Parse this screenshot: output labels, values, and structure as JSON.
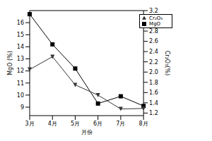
{
  "chart_data": {
    "type": "line",
    "x_label": "月份",
    "y_label": "MgO (%)",
    "y2_label": "Cr₂O₃(%)",
    "categories": [
      "3月",
      "4月",
      "5月",
      "6月",
      "7月",
      "8月"
    ],
    "series": [
      {
        "name": "MgO",
        "color": "#000000",
        "marker": "square",
        "values": [
          16.7,
          14.2,
          12.2,
          9.3,
          9.9,
          9.1
        ]
      },
      {
        "name": "Cr₂O₃",
        "color": "#333333",
        "marker": "triangle-down",
        "axis": "y2",
        "values": [
          2.05,
          2.3,
          1.75,
          1.55,
          1.28,
          1.29
        ]
      }
    ],
    "ylim": [
      8.3,
      17
    ],
    "yticks": [
      9,
      10,
      11,
      12,
      13,
      14,
      15,
      16
    ],
    "y2lim": [
      1.15,
      3.2
    ],
    "y2ticks": [
      1.2,
      1.4,
      1.6,
      1.8,
      {
        "value": 2,
        "label": "2.0"
      },
      2.2,
      2.4,
      2.6,
      2.8,
      {
        "value": 3,
        "label": "3.0"
      },
      3.2
    ],
    "legend": "upper right",
    "grid": false
  }
}
